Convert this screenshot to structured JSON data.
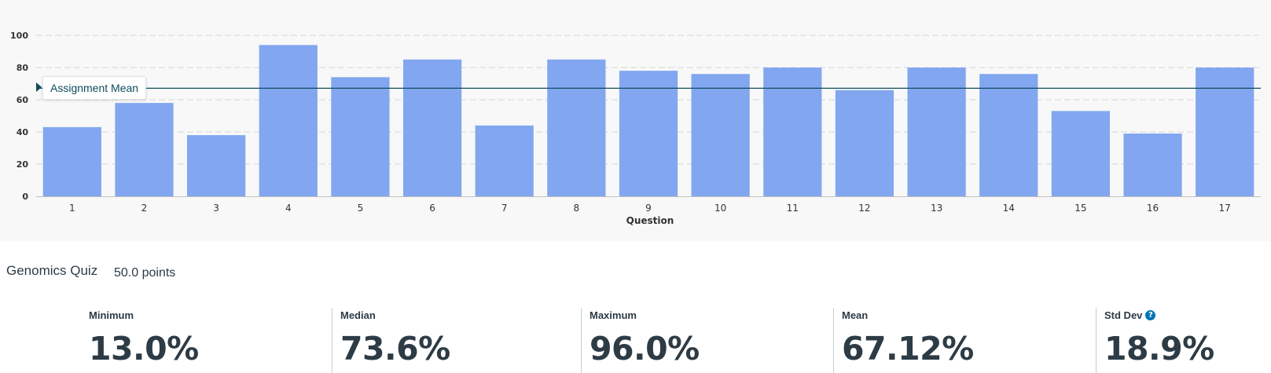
{
  "chart_data": {
    "type": "bar",
    "categories": [
      "1",
      "2",
      "3",
      "4",
      "5",
      "6",
      "7",
      "8",
      "9",
      "10",
      "11",
      "12",
      "13",
      "14",
      "15",
      "16",
      "17"
    ],
    "values": [
      43,
      58,
      38,
      94,
      74,
      85,
      44,
      85,
      78,
      76,
      80,
      66,
      80,
      76,
      53,
      39,
      80
    ],
    "xlabel": "Question",
    "ylabel": "",
    "ylim": [
      0,
      100
    ],
    "yticks": [
      "0",
      "20",
      "40",
      "60",
      "80",
      "100"
    ],
    "grid": true,
    "bar_color": "#82a7f0",
    "reference_line": {
      "label": "Assignment Mean",
      "value": 67.12,
      "color": "#0f4c5c"
    }
  },
  "assignment": {
    "title": "Genomics Quiz",
    "points": "50.0 points"
  },
  "stats": [
    {
      "label": "Minimum",
      "value": "13.0%"
    },
    {
      "label": "Median",
      "value": "73.6%"
    },
    {
      "label": "Maximum",
      "value": "96.0%"
    },
    {
      "label": "Mean",
      "value": "67.12%"
    },
    {
      "label": "Std Dev",
      "value": "18.9%",
      "icon": "help-icon"
    }
  ]
}
